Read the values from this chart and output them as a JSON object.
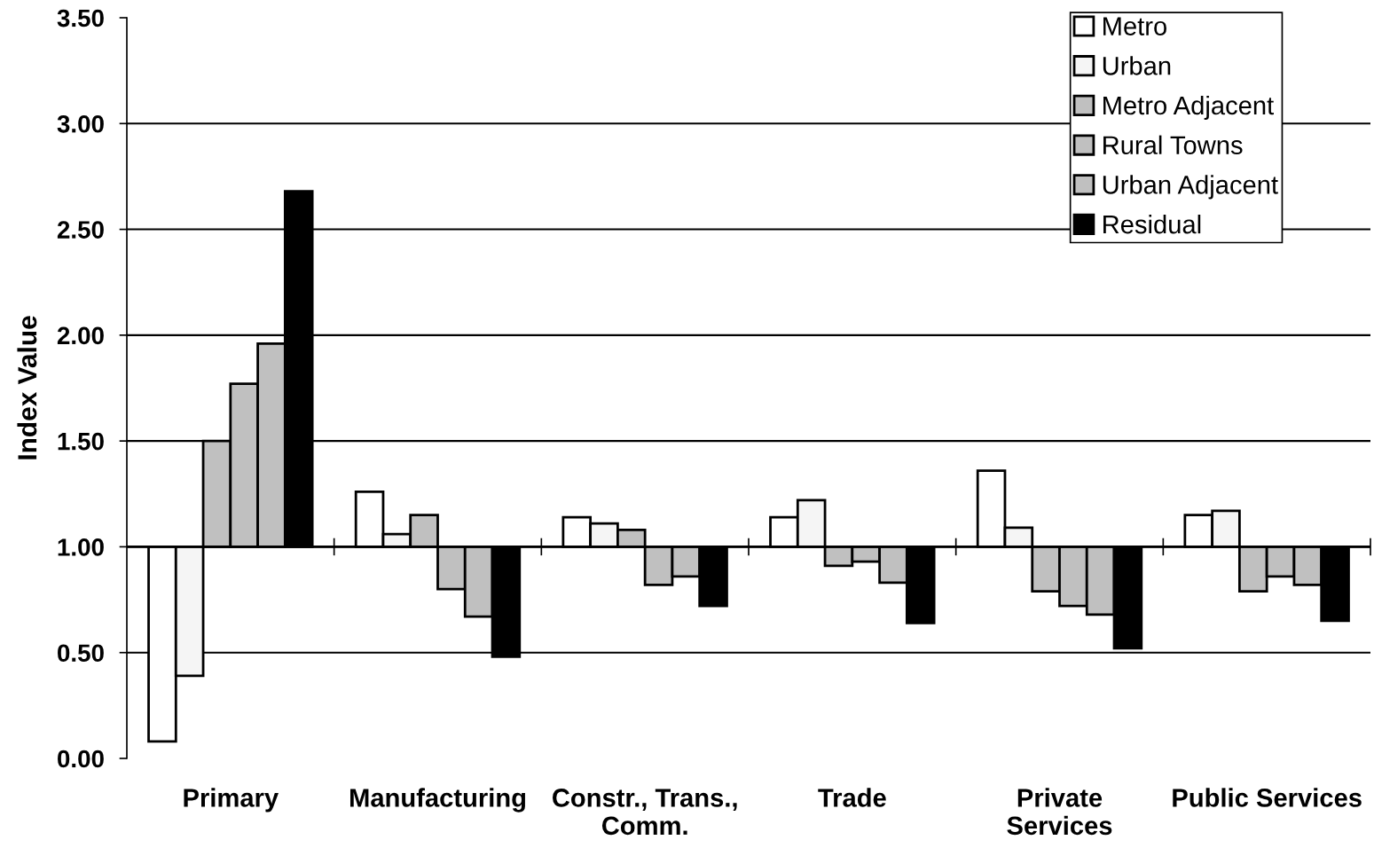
{
  "chart_data": {
    "type": "bar",
    "ylabel": "Index Value",
    "categories": [
      "Primary",
      "Manufacturing",
      "Constr., Trans.,\nComm.",
      "Trade",
      "Private\nServices",
      "Public Services"
    ],
    "series": [
      {
        "name": "Metro",
        "color": "#ffffff",
        "base": [
          1,
          1,
          1,
          1,
          1,
          1
        ],
        "values": [
          -0.92,
          0.26,
          0.14,
          0.14,
          0.36,
          0.15
        ]
      },
      {
        "name": "Urban",
        "color": "#f5f5f5",
        "base": [
          1,
          1,
          1,
          1,
          1,
          1
        ],
        "values": [
          -0.61,
          0.06,
          0.11,
          0.22,
          0.09,
          0.17
        ]
      },
      {
        "name": "Metro Adjacent",
        "color": "#c0c0c0",
        "base": [
          1,
          1,
          1,
          1,
          1,
          1
        ],
        "values": [
          0.5,
          0.15,
          0.08,
          -0.09,
          -0.21,
          -0.21
        ]
      },
      {
        "name": "Rural Towns",
        "color": "#c0c0c0",
        "base": [
          1,
          1,
          1,
          1,
          1,
          1
        ],
        "values": [
          0.77,
          -0.2,
          -0.18,
          -0.07,
          -0.28,
          -0.14
        ]
      },
      {
        "name": "Urban Adjacent",
        "color": "#c0c0c0",
        "base": [
          1,
          1,
          1,
          1,
          1,
          1
        ],
        "values": [
          0.96,
          -0.33,
          -0.14,
          -0.17,
          -0.32,
          -0.18
        ]
      },
      {
        "name": "Residual",
        "color": "#000000",
        "base": [
          1,
          1,
          1,
          1,
          1,
          1
        ],
        "values": [
          1.68,
          -0.52,
          -0.28,
          -0.36,
          -0.48,
          -0.35
        ]
      }
    ],
    "ylim": [
      0,
      3.5
    ],
    "yticks": [
      {
        "value": 0,
        "label": "0.00"
      },
      {
        "value": 0.5,
        "label": "0.50"
      },
      {
        "value": 1,
        "label": "1.00"
      },
      {
        "value": 1.5,
        "label": "1.50"
      },
      {
        "value": 2,
        "label": "2.00"
      },
      {
        "value": 2.5,
        "label": "2.50"
      },
      {
        "value": 3,
        "label": "3.00"
      },
      {
        "value": 3.5,
        "label": "3.50"
      }
    ],
    "ref_lines": [
      {
        "axis": "y",
        "value": 1,
        "color": "#000000"
      }
    ],
    "grid": "y",
    "legend": "top right"
  }
}
